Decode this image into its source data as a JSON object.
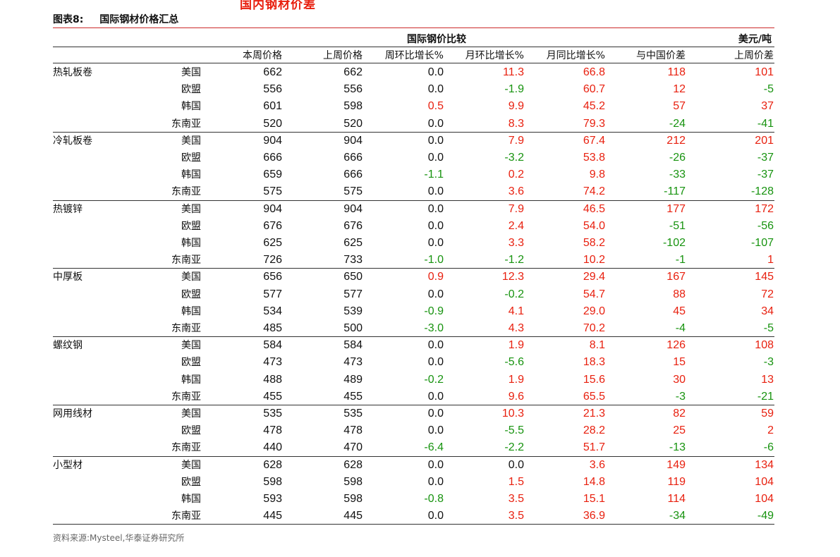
{
  "top_partial_text": "国内钢材价差",
  "figure": {
    "label": "图表8:",
    "title": "国际钢材价格汇总"
  },
  "header": {
    "group_title": "国际钢价比较",
    "unit": "美元/吨",
    "columns": [
      "本周价格",
      "上周价格",
      "周环比增长%",
      "月环比增长%",
      "月同比增长%",
      "与中国价差",
      "上周价差"
    ]
  },
  "colors": {
    "up": "#e8200f",
    "down": "#17930f",
    "neutral": "#111111",
    "rule": "#cc2a2a"
  },
  "groups": [
    {
      "category": "热轧板卷",
      "rows": [
        {
          "region": "美国",
          "v": [
            "662",
            "662",
            "0.0",
            "11.3",
            "66.8",
            "118",
            "101"
          ]
        },
        {
          "region": "欧盟",
          "v": [
            "556",
            "556",
            "0.0",
            "-1.9",
            "60.7",
            "12",
            "-5"
          ]
        },
        {
          "region": "韩国",
          "v": [
            "601",
            "598",
            "0.5",
            "9.9",
            "45.2",
            "57",
            "37"
          ]
        },
        {
          "region": "东南亚",
          "v": [
            "520",
            "520",
            "0.0",
            "8.3",
            "79.3",
            "-24",
            "-41"
          ]
        }
      ]
    },
    {
      "category": "冷轧板卷",
      "rows": [
        {
          "region": "美国",
          "v": [
            "904",
            "904",
            "0.0",
            "7.9",
            "67.4",
            "212",
            "201"
          ]
        },
        {
          "region": "欧盟",
          "v": [
            "666",
            "666",
            "0.0",
            "-3.2",
            "53.8",
            "-26",
            "-37"
          ]
        },
        {
          "region": "韩国",
          "v": [
            "659",
            "666",
            "-1.1",
            "0.2",
            "9.8",
            "-33",
            "-37"
          ]
        },
        {
          "region": "东南亚",
          "v": [
            "575",
            "575",
            "0.0",
            "3.6",
            "74.2",
            "-117",
            "-128"
          ]
        }
      ]
    },
    {
      "category": "热镀锌",
      "rows": [
        {
          "region": "美国",
          "v": [
            "904",
            "904",
            "0.0",
            "7.9",
            "46.5",
            "177",
            "172"
          ]
        },
        {
          "region": "欧盟",
          "v": [
            "676",
            "676",
            "0.0",
            "2.4",
            "54.0",
            "-51",
            "-56"
          ]
        },
        {
          "region": "韩国",
          "v": [
            "625",
            "625",
            "0.0",
            "3.3",
            "58.2",
            "-102",
            "-107"
          ]
        },
        {
          "region": "东南亚",
          "v": [
            "726",
            "733",
            "-1.0",
            "-1.2",
            "10.2",
            "-1",
            "1"
          ]
        }
      ]
    },
    {
      "category": "中厚板",
      "rows": [
        {
          "region": "美国",
          "v": [
            "656",
            "650",
            "0.9",
            "12.3",
            "29.4",
            "167",
            "145"
          ]
        },
        {
          "region": "欧盟",
          "v": [
            "577",
            "577",
            "0.0",
            "-0.2",
            "54.7",
            "88",
            "72"
          ]
        },
        {
          "region": "韩国",
          "v": [
            "534",
            "539",
            "-0.9",
            "4.1",
            "29.0",
            "45",
            "34"
          ]
        },
        {
          "region": "东南亚",
          "v": [
            "485",
            "500",
            "-3.0",
            "4.3",
            "70.2",
            "-4",
            "-5"
          ]
        }
      ]
    },
    {
      "category": "螺纹钢",
      "rows": [
        {
          "region": "美国",
          "v": [
            "584",
            "584",
            "0.0",
            "1.9",
            "8.1",
            "126",
            "108"
          ]
        },
        {
          "region": "欧盟",
          "v": [
            "473",
            "473",
            "0.0",
            "-5.6",
            "18.3",
            "15",
            "-3"
          ]
        },
        {
          "region": "韩国",
          "v": [
            "488",
            "489",
            "-0.2",
            "1.9",
            "15.6",
            "30",
            "13"
          ]
        },
        {
          "region": "东南亚",
          "v": [
            "455",
            "455",
            "0.0",
            "9.6",
            "65.5",
            "-3",
            "-21"
          ]
        }
      ]
    },
    {
      "category": "网用线材",
      "rows": [
        {
          "region": "美国",
          "v": [
            "535",
            "535",
            "0.0",
            "10.3",
            "21.3",
            "82",
            "59"
          ]
        },
        {
          "region": "欧盟",
          "v": [
            "478",
            "478",
            "0.0",
            "-5.5",
            "28.2",
            "25",
            "2"
          ]
        },
        {
          "region": "东南亚",
          "v": [
            "440",
            "470",
            "-6.4",
            "-2.2",
            "51.7",
            "-13",
            "-6"
          ]
        }
      ]
    },
    {
      "category": "小型材",
      "rows": [
        {
          "region": "美国",
          "v": [
            "628",
            "628",
            "0.0",
            "0.0",
            "3.6",
            "149",
            "134"
          ]
        },
        {
          "region": "欧盟",
          "v": [
            "598",
            "598",
            "0.0",
            "1.5",
            "14.8",
            "119",
            "104"
          ]
        },
        {
          "region": "韩国",
          "v": [
            "593",
            "598",
            "-0.8",
            "3.5",
            "15.1",
            "114",
            "104"
          ]
        },
        {
          "region": "东南亚",
          "v": [
            "445",
            "445",
            "0.0",
            "3.5",
            "36.9",
            "-34",
            "-49"
          ]
        }
      ]
    }
  ],
  "source": "资料来源:Mysteel,华泰证券研究所"
}
